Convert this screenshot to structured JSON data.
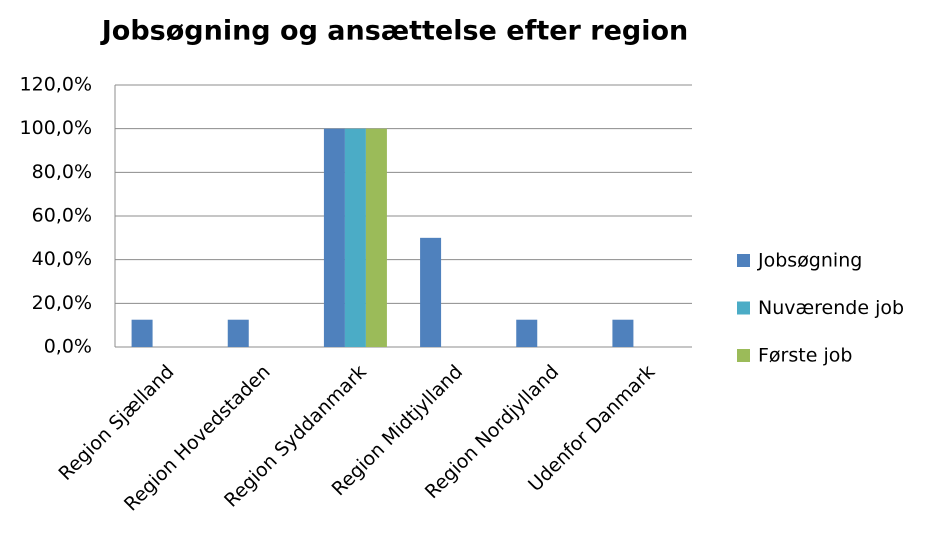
{
  "chart_data": {
    "type": "bar",
    "title": "Jobsøgning og ansættelse efter region",
    "categories": [
      "Region Sjælland",
      "Region Hovedstaden",
      "Region Syddanmark",
      "Region Midtjylland",
      "Region Nordjylland",
      "Udenfor Danmark"
    ],
    "series": [
      {
        "name": "Jobsøgning",
        "color": "#4f81bd",
        "values": [
          12.5,
          12.5,
          100,
          50,
          12.5,
          12.5
        ]
      },
      {
        "name": "Nuværende job",
        "color": "#4bacc6",
        "values": [
          0,
          0,
          100,
          0,
          0,
          0
        ]
      },
      {
        "name": "Første job",
        "color": "#9bbb59",
        "values": [
          0,
          0,
          100,
          0,
          0,
          0
        ]
      }
    ],
    "ylim": [
      0,
      120
    ],
    "yticks": [
      {
        "value": 0,
        "label": "0,0%"
      },
      {
        "value": 20,
        "label": "20,0%"
      },
      {
        "value": 40,
        "label": "40,0%"
      },
      {
        "value": 60,
        "label": "60,0%"
      },
      {
        "value": 80,
        "label": "80,0%"
      },
      {
        "value": 100,
        "label": "100,0%"
      },
      {
        "value": 120,
        "label": "120,0%"
      }
    ],
    "grid": true,
    "legend": "right"
  }
}
